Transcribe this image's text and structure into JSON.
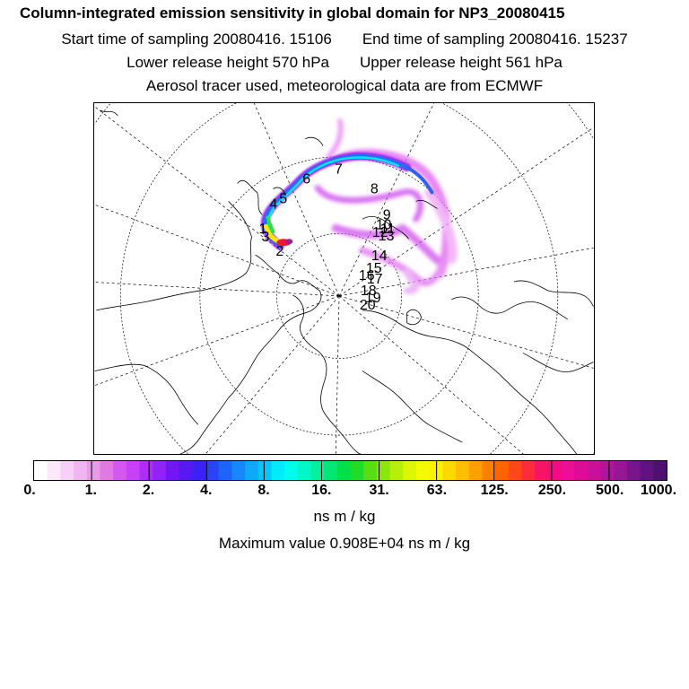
{
  "header": {
    "title": "Column-integrated emission sensitivity in global domain for NP3_20080415",
    "start_time": "Start time of sampling 20080416. 15106",
    "end_time": "End time of sampling 20080416. 15237",
    "lower_height": "Lower release height  570 hPa",
    "upper_height": "Upper release height  561 hPa",
    "tracer_note": "Aerosol tracer used, meteorological data are from ECMWF"
  },
  "map": {
    "projection": "polar-stereographic",
    "day_labels": [
      "1",
      "2",
      "3",
      "4",
      "5",
      "6",
      "7",
      "8",
      "9",
      "10",
      "11",
      "12",
      "13",
      "14",
      "15",
      "16",
      "17",
      "18",
      "19",
      "20"
    ]
  },
  "colorbar": {
    "tick_labels": [
      "0.",
      "1.",
      "2.",
      "4.",
      "8.",
      "16.",
      "31.",
      "63.",
      "125.",
      "250.",
      "500.",
      "1000."
    ],
    "colors": [
      "#ffffff",
      "#fbe8fb",
      "#f7d0f7",
      "#f1b6f1",
      "#e99ae9",
      "#e07ae0",
      "#d457f0",
      "#c840f8",
      "#b02cf8",
      "#9222f6",
      "#7216f2",
      "#5a18f0",
      "#3a22f2",
      "#2844f5",
      "#1e64fa",
      "#1688fc",
      "#0ea8fd",
      "#08c6fd",
      "#00ecfa",
      "#00fcec",
      "#00f8c8",
      "#00f0a0",
      "#00e874",
      "#00e048",
      "#20dc28",
      "#56de12",
      "#8ae60c",
      "#b8ef08",
      "#dcf606",
      "#f4fa04",
      "#fff000",
      "#ffd800",
      "#ffbe00",
      "#ffa000",
      "#ff8000",
      "#ff6400",
      "#ff4818",
      "#fc2c38",
      "#f81464",
      "#f40a84",
      "#ec0e96",
      "#dc0c98",
      "#c8109a",
      "#b0149a",
      "#961696",
      "#7a148c",
      "#621280",
      "#4e1070"
    ],
    "units": "ns m / kg",
    "max_value": "Maximum value  0.908E+04 ns m / kg"
  }
}
